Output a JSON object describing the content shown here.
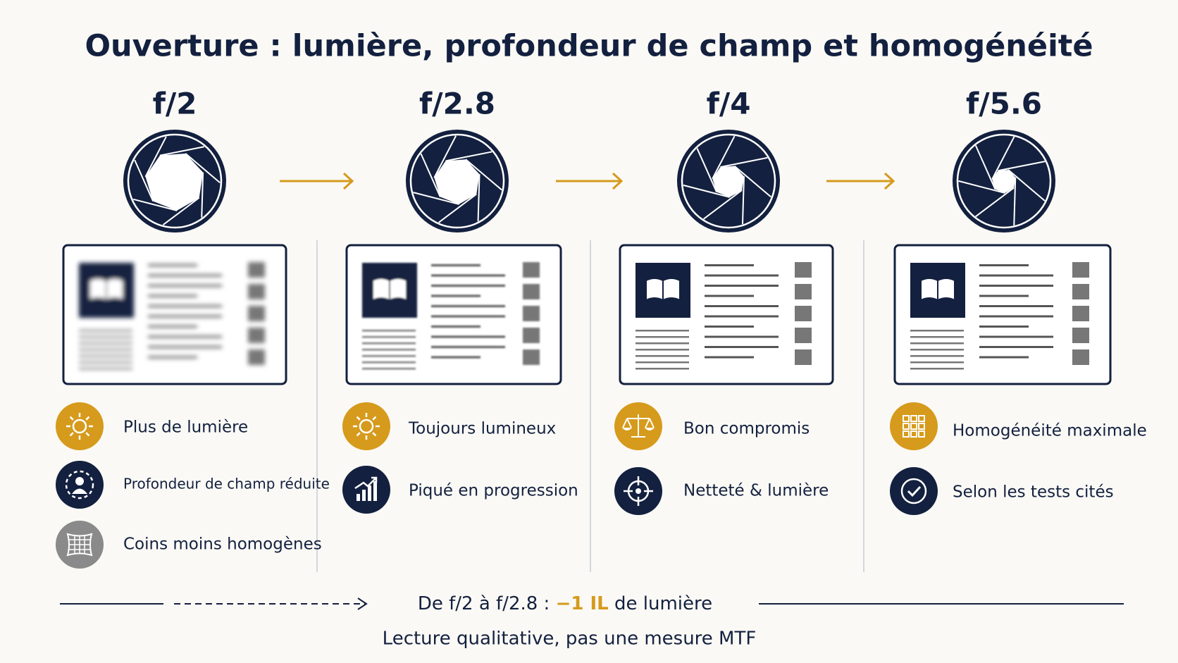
{
  "title": "Ouverture : lumière, profondeur de champ et homogénéité",
  "columns": [
    {
      "aperture": "f/2",
      "items": [
        "Plus de lumière",
        "Profondeur de champ réduite",
        "Coins moins homogènes"
      ]
    },
    {
      "aperture": "f/2.8",
      "items": [
        "Toujours lumineux",
        "Piqué en progression"
      ]
    },
    {
      "aperture": "f/4",
      "items": [
        "Bon compromis",
        "Netteté & lumière"
      ]
    },
    {
      "aperture": "f/5.6",
      "items": [
        "Homogénéité maximale",
        "Selon les tests cités"
      ]
    }
  ],
  "footer": {
    "line1": [
      "De f/2 à f/2.8 :",
      "−1 IL",
      "de lumière"
    ],
    "line2": "Lecture qualitative, pas une mesure MTF"
  }
}
